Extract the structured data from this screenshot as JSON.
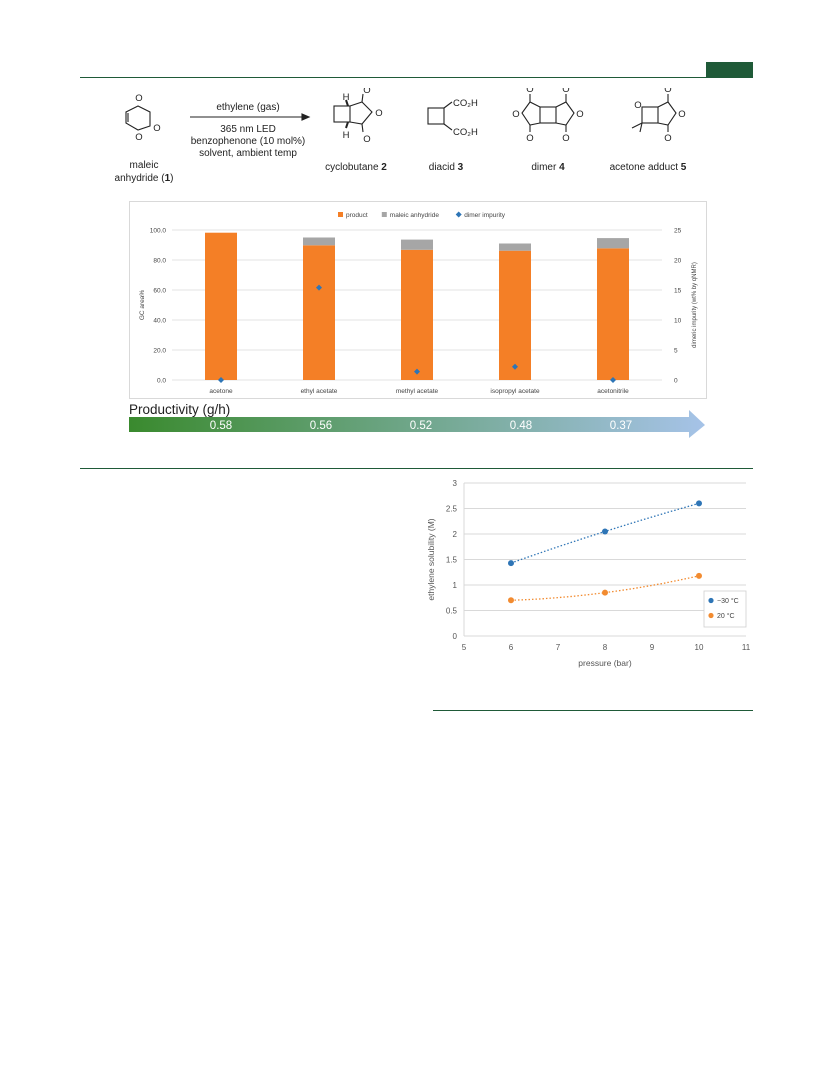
{
  "colors": {
    "accent_green": "#1f5a38",
    "product": "#f47f26",
    "maleic_anhydride": "#a6a6a6",
    "dimer_impurity": "#2e75b6",
    "series_minus30": "#2e75b6",
    "series_20": "#f28b30",
    "gradient_start": "#3a8a2e",
    "gradient_end": "#a6c3e8"
  },
  "scheme": {
    "reagent": "ethylene (gas)",
    "cond1": "365 nm LED",
    "cond2": "benzophenone  (10 mol%)",
    "cond3": "solvent, ambient temp",
    "sm_line1": "maleic",
    "sm_line2": "anhydride (",
    "sm_num": "1",
    "sm_close": ")",
    "p2_label": "cyclobutane ",
    "p2_num": "2",
    "p3_label": "diacid ",
    "p3_num": "3",
    "p4_label": "dimer ",
    "p4_num": "4",
    "p5_label": "acetone  adduct ",
    "p5_num": "5",
    "atom_O": "O",
    "atom_H": "H",
    "group_co2h": "CO₂H"
  },
  "productivity": {
    "title": "Productivity (g/h)",
    "values": [
      "0.58",
      "0.56",
      "0.52",
      "0.48",
      "0.37"
    ]
  },
  "chart_data": [
    {
      "type": "bar",
      "ylabel": "GC area%",
      "y2label": "dimeric impurity (wt% by qNMR)",
      "categories": [
        "acetone",
        "ethyl acetate",
        "methyl acetate",
        "isopropyl acetate",
        "acetonitrile"
      ],
      "ylim": [
        0,
        100
      ],
      "yticks": [
        "0.0",
        "20.0",
        "40.0",
        "60.0",
        "80.0",
        "100.0"
      ],
      "y2lim": [
        0,
        25
      ],
      "y2ticks": [
        "0",
        "5",
        "10",
        "15",
        "20",
        "25"
      ],
      "legend": "top-center",
      "series": [
        {
          "name": "product",
          "kind": "stacked-bar",
          "axis": "left",
          "values": [
            98.2,
            89.8,
            86.8,
            86.2,
            87.8
          ]
        },
        {
          "name": "maleic anhydride",
          "kind": "stacked-bar",
          "axis": "left",
          "values": [
            0,
            5.2,
            6.8,
            4.8,
            6.8
          ]
        },
        {
          "name": "dimer impurity",
          "kind": "marker",
          "axis": "right",
          "values": [
            0.0,
            15.4,
            1.4,
            2.2,
            0.0
          ]
        }
      ],
      "grid": true
    },
    {
      "type": "scatter",
      "xlabel": "pressure (bar)",
      "ylabel": "ethylene solubility (M)",
      "xlim": [
        5,
        11
      ],
      "ylim": [
        0,
        3
      ],
      "xticks": [
        "5",
        "6",
        "7",
        "8",
        "9",
        "10",
        "11"
      ],
      "yticks": [
        "0",
        "0.5",
        "1",
        "1.5",
        "2",
        "2.5",
        "3"
      ],
      "legend": "bottom-right",
      "grid": true,
      "series": [
        {
          "name": "−30 °C",
          "x": [
            6,
            8,
            10
          ],
          "y": [
            1.43,
            2.05,
            2.6
          ],
          "trendline": "dotted"
        },
        {
          "name": "20 °C",
          "x": [
            6,
            8,
            10
          ],
          "y": [
            0.7,
            0.85,
            1.18
          ],
          "trendline": "dotted"
        }
      ]
    }
  ]
}
